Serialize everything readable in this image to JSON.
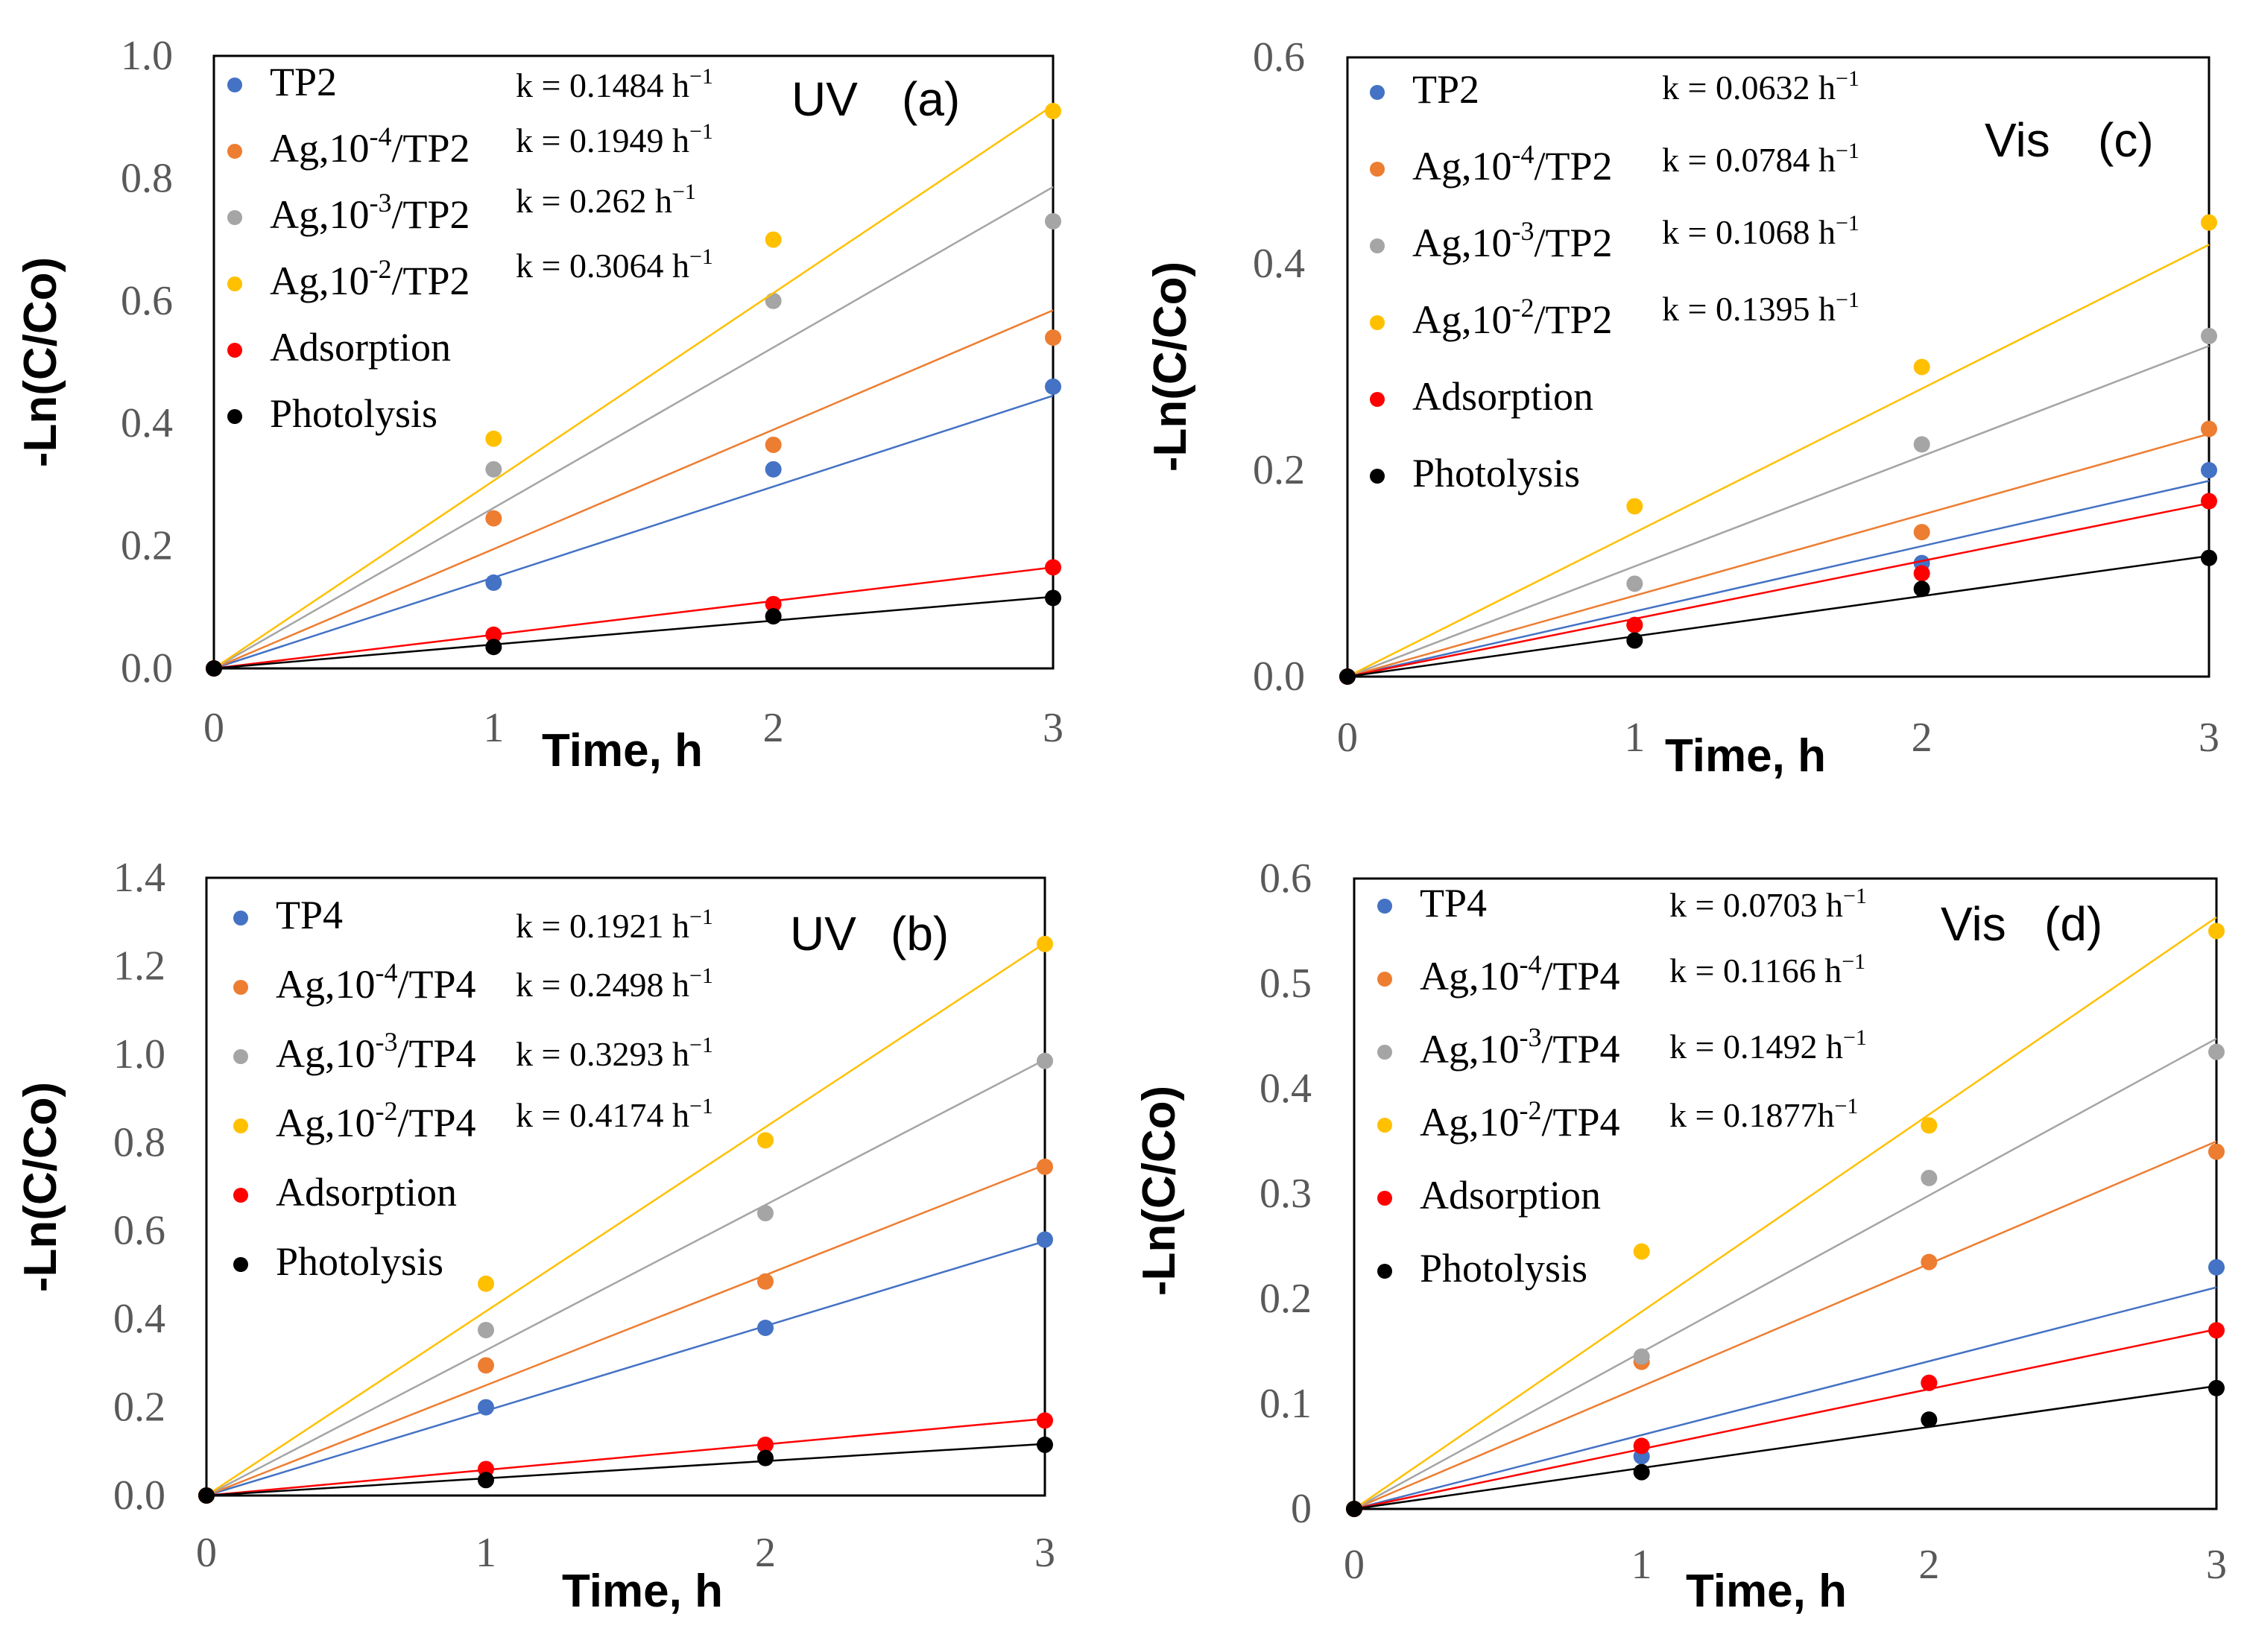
{
  "colors": {
    "blue": "#4472C4",
    "orange": "#ED7D31",
    "gray": "#A5A5A5",
    "yellow": "#FFC000",
    "red": "#FF0000",
    "black": "#000000",
    "frame": "#000000"
  },
  "chart_data": [
    {
      "type": "scatter",
      "panel": "a",
      "condition": "UV",
      "label": "(a)",
      "xlabel": "Time, h",
      "ylabel": "-Ln(C/Co)",
      "xlim": [
        0,
        3
      ],
      "ylim": [
        0,
        1.0
      ],
      "x_ticks": [
        "0",
        "1",
        "2",
        "3"
      ],
      "y_ticks": [
        "0.0",
        "0.2",
        "0.4",
        "0.6",
        "0.8",
        "1.0"
      ],
      "x": [
        0,
        1,
        2,
        3
      ],
      "series": [
        {
          "name": "TP2",
          "k_label": "k = 0.1484 h",
          "k": 0.1484,
          "color": "blue",
          "values": [
            0,
            0.14,
            0.325,
            0.46
          ]
        },
        {
          "name": "Ag,10",
          "exp": "-4",
          "tail": "/TP2",
          "k_label": "k = 0.1949 h",
          "k": 0.1949,
          "color": "orange",
          "values": [
            0,
            0.245,
            0.365,
            0.54
          ]
        },
        {
          "name": "Ag,10",
          "exp": "-3",
          "tail": "/TP2",
          "k_label": "k = 0.262 h",
          "k": 0.262,
          "color": "gray",
          "values": [
            0,
            0.325,
            0.6,
            0.73
          ]
        },
        {
          "name": "Ag,10",
          "exp": "-2",
          "tail": "/TP2",
          "k_label": "k = 0.3064 h",
          "k": 0.3064,
          "color": "yellow",
          "values": [
            0,
            0.375,
            0.7,
            0.91
          ]
        },
        {
          "name": "Adsorption",
          "k_label": "",
          "k": 0.055,
          "color": "red",
          "values": [
            0,
            0.055,
            0.105,
            0.165
          ]
        },
        {
          "name": "Photolysis",
          "k_label": "",
          "k": 0.039,
          "color": "black",
          "values": [
            0,
            0.035,
            0.085,
            0.115
          ]
        }
      ]
    },
    {
      "type": "scatter",
      "panel": "c",
      "condition": "Vis",
      "label": "(c)",
      "xlabel": "Time, h",
      "ylabel": "-Ln(C/Co)",
      "xlim": [
        0,
        3
      ],
      "ylim": [
        0,
        0.6
      ],
      "x_ticks": [
        "0",
        "1",
        "2",
        "3"
      ],
      "y_ticks": [
        "0.0",
        "0.2",
        "0.4",
        "0.6"
      ],
      "x": [
        0,
        1,
        2,
        3
      ],
      "series": [
        {
          "name": "TP2",
          "k_label": "k = 0.0632 h",
          "k": 0.0632,
          "color": "blue",
          "values": [
            0,
            0.05,
            0.11,
            0.2
          ]
        },
        {
          "name": "Ag,10",
          "exp": "-4",
          "tail": "/TP2",
          "k_label": "k = 0.0784 h",
          "k": 0.0784,
          "color": "orange",
          "values": [
            0,
            0.05,
            0.14,
            0.24
          ]
        },
        {
          "name": "Ag,10",
          "exp": "-3",
          "tail": "/TP2",
          "k_label": "k = 0.1068 h",
          "k": 0.1068,
          "color": "gray",
          "values": [
            0,
            0.09,
            0.225,
            0.33
          ]
        },
        {
          "name": "Ag,10",
          "exp": "-2",
          "tail": "/TP2",
          "k_label": "k = 0.1395 h",
          "k": 0.1395,
          "color": "yellow",
          "values": [
            0,
            0.165,
            0.3,
            0.44
          ]
        },
        {
          "name": "Adsorption",
          "k_label": "",
          "k": 0.056,
          "color": "red",
          "values": [
            0,
            0.05,
            0.1,
            0.17
          ]
        },
        {
          "name": "Photolysis",
          "k_label": "",
          "k": 0.039,
          "color": "black",
          "values": [
            0,
            0.035,
            0.085,
            0.115
          ]
        }
      ]
    },
    {
      "type": "scatter",
      "panel": "b",
      "condition": "UV",
      "label": "(b)",
      "xlabel": "Time, h",
      "ylabel": "-Ln(C/Co)",
      "xlim": [
        0,
        3
      ],
      "ylim": [
        0,
        1.4
      ],
      "x_ticks": [
        "0",
        "1",
        "2",
        "3"
      ],
      "y_ticks": [
        "0.0",
        "0.2",
        "0.4",
        "0.6",
        "0.8",
        "1.0",
        "1.2",
        "1.4"
      ],
      "x": [
        0,
        1,
        2,
        3
      ],
      "series": [
        {
          "name": "TP4",
          "k_label": "k = 0.1921 h",
          "k": 0.1921,
          "color": "blue",
          "values": [
            0,
            0.2,
            0.38,
            0.58
          ]
        },
        {
          "name": "Ag,10",
          "exp": "-4",
          "tail": "/TP4",
          "k_label": "k = 0.2498 h",
          "k": 0.2498,
          "color": "orange",
          "values": [
            0,
            0.295,
            0.485,
            0.745
          ]
        },
        {
          "name": "Ag,10",
          "exp": "-3",
          "tail": "/TP4",
          "k_label": "k = 0.3293 h",
          "k": 0.3293,
          "color": "gray",
          "values": [
            0,
            0.375,
            0.64,
            0.985
          ]
        },
        {
          "name": "Ag,10",
          "exp": "-2",
          "tail": "/TP4",
          "k_label": "k = 0.4174 h",
          "k": 0.4174,
          "color": "yellow",
          "values": [
            0,
            0.48,
            0.805,
            1.25
          ]
        },
        {
          "name": "Adsorption",
          "k_label": "",
          "k": 0.058,
          "color": "red",
          "values": [
            0,
            0.06,
            0.115,
            0.17
          ]
        },
        {
          "name": "Photolysis",
          "k_label": "",
          "k": 0.039,
          "color": "black",
          "values": [
            0,
            0.035,
            0.085,
            0.115
          ]
        }
      ]
    },
    {
      "type": "scatter",
      "panel": "d",
      "condition": "Vis",
      "label": "(d)",
      "xlabel": "Time, h",
      "ylabel": "-Ln(C/Co)",
      "xlim": [
        0,
        3
      ],
      "ylim": [
        0,
        0.6
      ],
      "x_ticks": [
        "0",
        "1",
        "2",
        "3"
      ],
      "y_ticks": [
        "0",
        "0.1",
        "0.2",
        "0.3",
        "0.4",
        "0.5",
        "0.6"
      ],
      "x": [
        0,
        1,
        2,
        3
      ],
      "series": [
        {
          "name": "TP4",
          "k_label": "k = 0.0703 h",
          "k": 0.0703,
          "color": "blue",
          "values": [
            0,
            0.05,
            0.12,
            0.23
          ]
        },
        {
          "name": "Ag,10",
          "exp": "-4",
          "tail": "/TP4",
          "k_label": "k = 0.1166 h",
          "k": 0.1166,
          "color": "orange",
          "values": [
            0,
            0.14,
            0.235,
            0.34
          ]
        },
        {
          "name": "Ag,10",
          "exp": "-3",
          "tail": "/TP4",
          "k_label": "k = 0.1492 h",
          "k": 0.1492,
          "color": "gray",
          "values": [
            0,
            0.145,
            0.315,
            0.435
          ]
        },
        {
          "name": "Ag,10",
          "exp": "-2",
          "tail": "/TP4",
          "k_label": "k = 0.1877h",
          "k": 0.1877,
          "color": "yellow",
          "values": [
            0,
            0.245,
            0.365,
            0.55
          ]
        },
        {
          "name": "Adsorption",
          "k_label": "",
          "k": 0.057,
          "color": "red",
          "values": [
            0,
            0.06,
            0.12,
            0.17
          ]
        },
        {
          "name": "Photolysis",
          "k_label": "",
          "k": 0.039,
          "color": "black",
          "values": [
            0,
            0.035,
            0.085,
            0.115
          ]
        }
      ]
    }
  ]
}
